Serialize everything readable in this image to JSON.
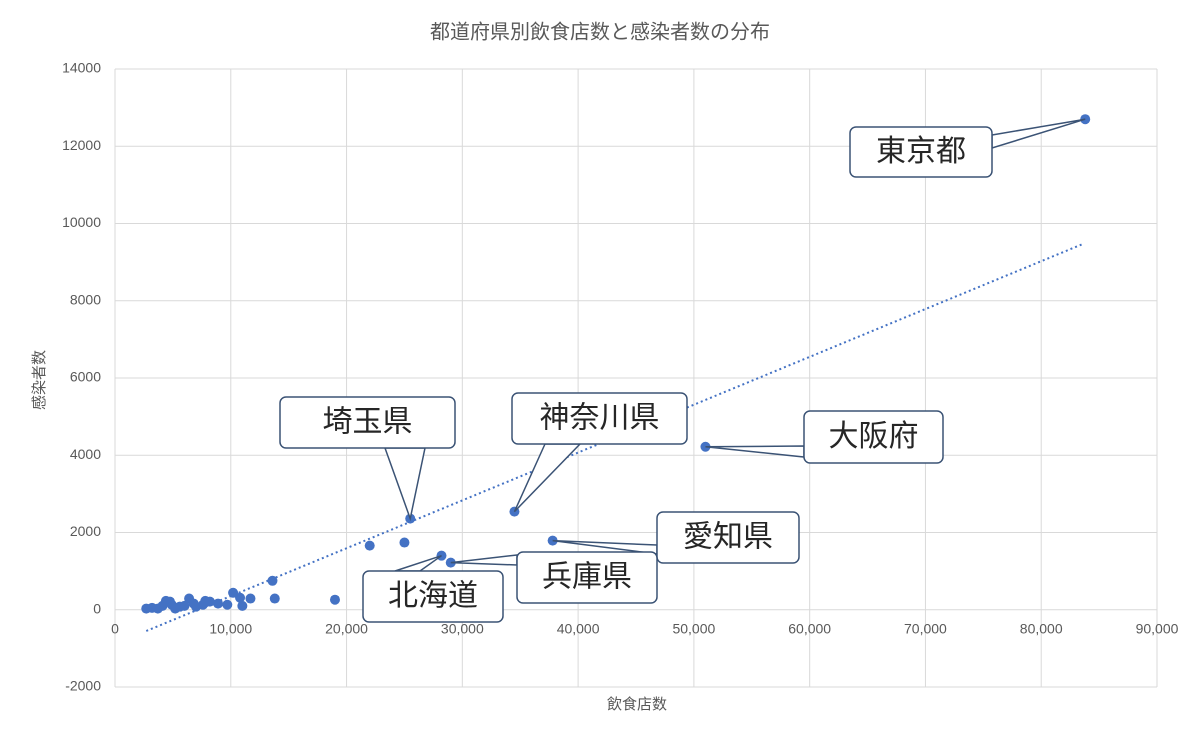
{
  "chart_data": {
    "type": "scatter",
    "title": "都道府県別飲食店数と感染者数の分布",
    "x_label": "飲食店数",
    "y_label": "感染者数",
    "color": "#4472c4",
    "grid": true,
    "xlim": [
      0,
      90000
    ],
    "ylim": [
      -2000,
      14000
    ],
    "xticks": [
      0,
      {
        "value": 10000,
        "label": "10,000"
      },
      {
        "value": 20000,
        "label": "20,000"
      },
      {
        "value": 30000,
        "label": "30,000"
      },
      {
        "value": 40000,
        "label": "40,000"
      },
      {
        "value": 50000,
        "label": "50,000"
      },
      {
        "value": 60000,
        "label": "60,000"
      },
      {
        "value": 70000,
        "label": "70,000"
      },
      {
        "value": 80000,
        "label": "80,000"
      },
      {
        "value": 90000,
        "label": "90,000"
      }
    ],
    "yticks": [
      -2000,
      0,
      2000,
      4000,
      6000,
      8000,
      10000,
      12000,
      14000
    ],
    "x": [
      83800,
      51000,
      34500,
      25500,
      37800,
      29000,
      28200,
      22000,
      25000,
      19000,
      13600,
      13800,
      11700,
      11000,
      10800,
      10200,
      9700,
      8900,
      8200,
      7800,
      7600,
      7000,
      6400,
      6000,
      5600,
      4900,
      4750,
      4400,
      4100,
      3700,
      3200,
      2700,
      5200,
      6800
    ],
    "y": [
      12700,
      4220,
      2540,
      2360,
      1790,
      1220,
      1400,
      1660,
      1740,
      260,
      750,
      290,
      290,
      100,
      310,
      440,
      130,
      160,
      210,
      230,
      130,
      80,
      290,
      100,
      80,
      130,
      210,
      230,
      100,
      30,
      50,
      30,
      30,
      160
    ],
    "labels": [
      "東京都",
      "大阪府",
      "神奈川県",
      "埼玉県",
      "愛知県",
      "兵庫県",
      "北海道",
      null,
      null,
      null,
      null,
      null,
      null,
      null,
      null,
      null,
      null,
      null,
      null,
      null,
      null,
      null,
      null,
      null,
      null,
      null,
      null,
      null,
      null,
      null,
      null,
      null,
      null,
      null
    ],
    "trendline": {
      "color": "#4472c4",
      "x": [
        2700,
        83600
      ],
      "y": [
        -550,
        9470
      ]
    }
  }
}
